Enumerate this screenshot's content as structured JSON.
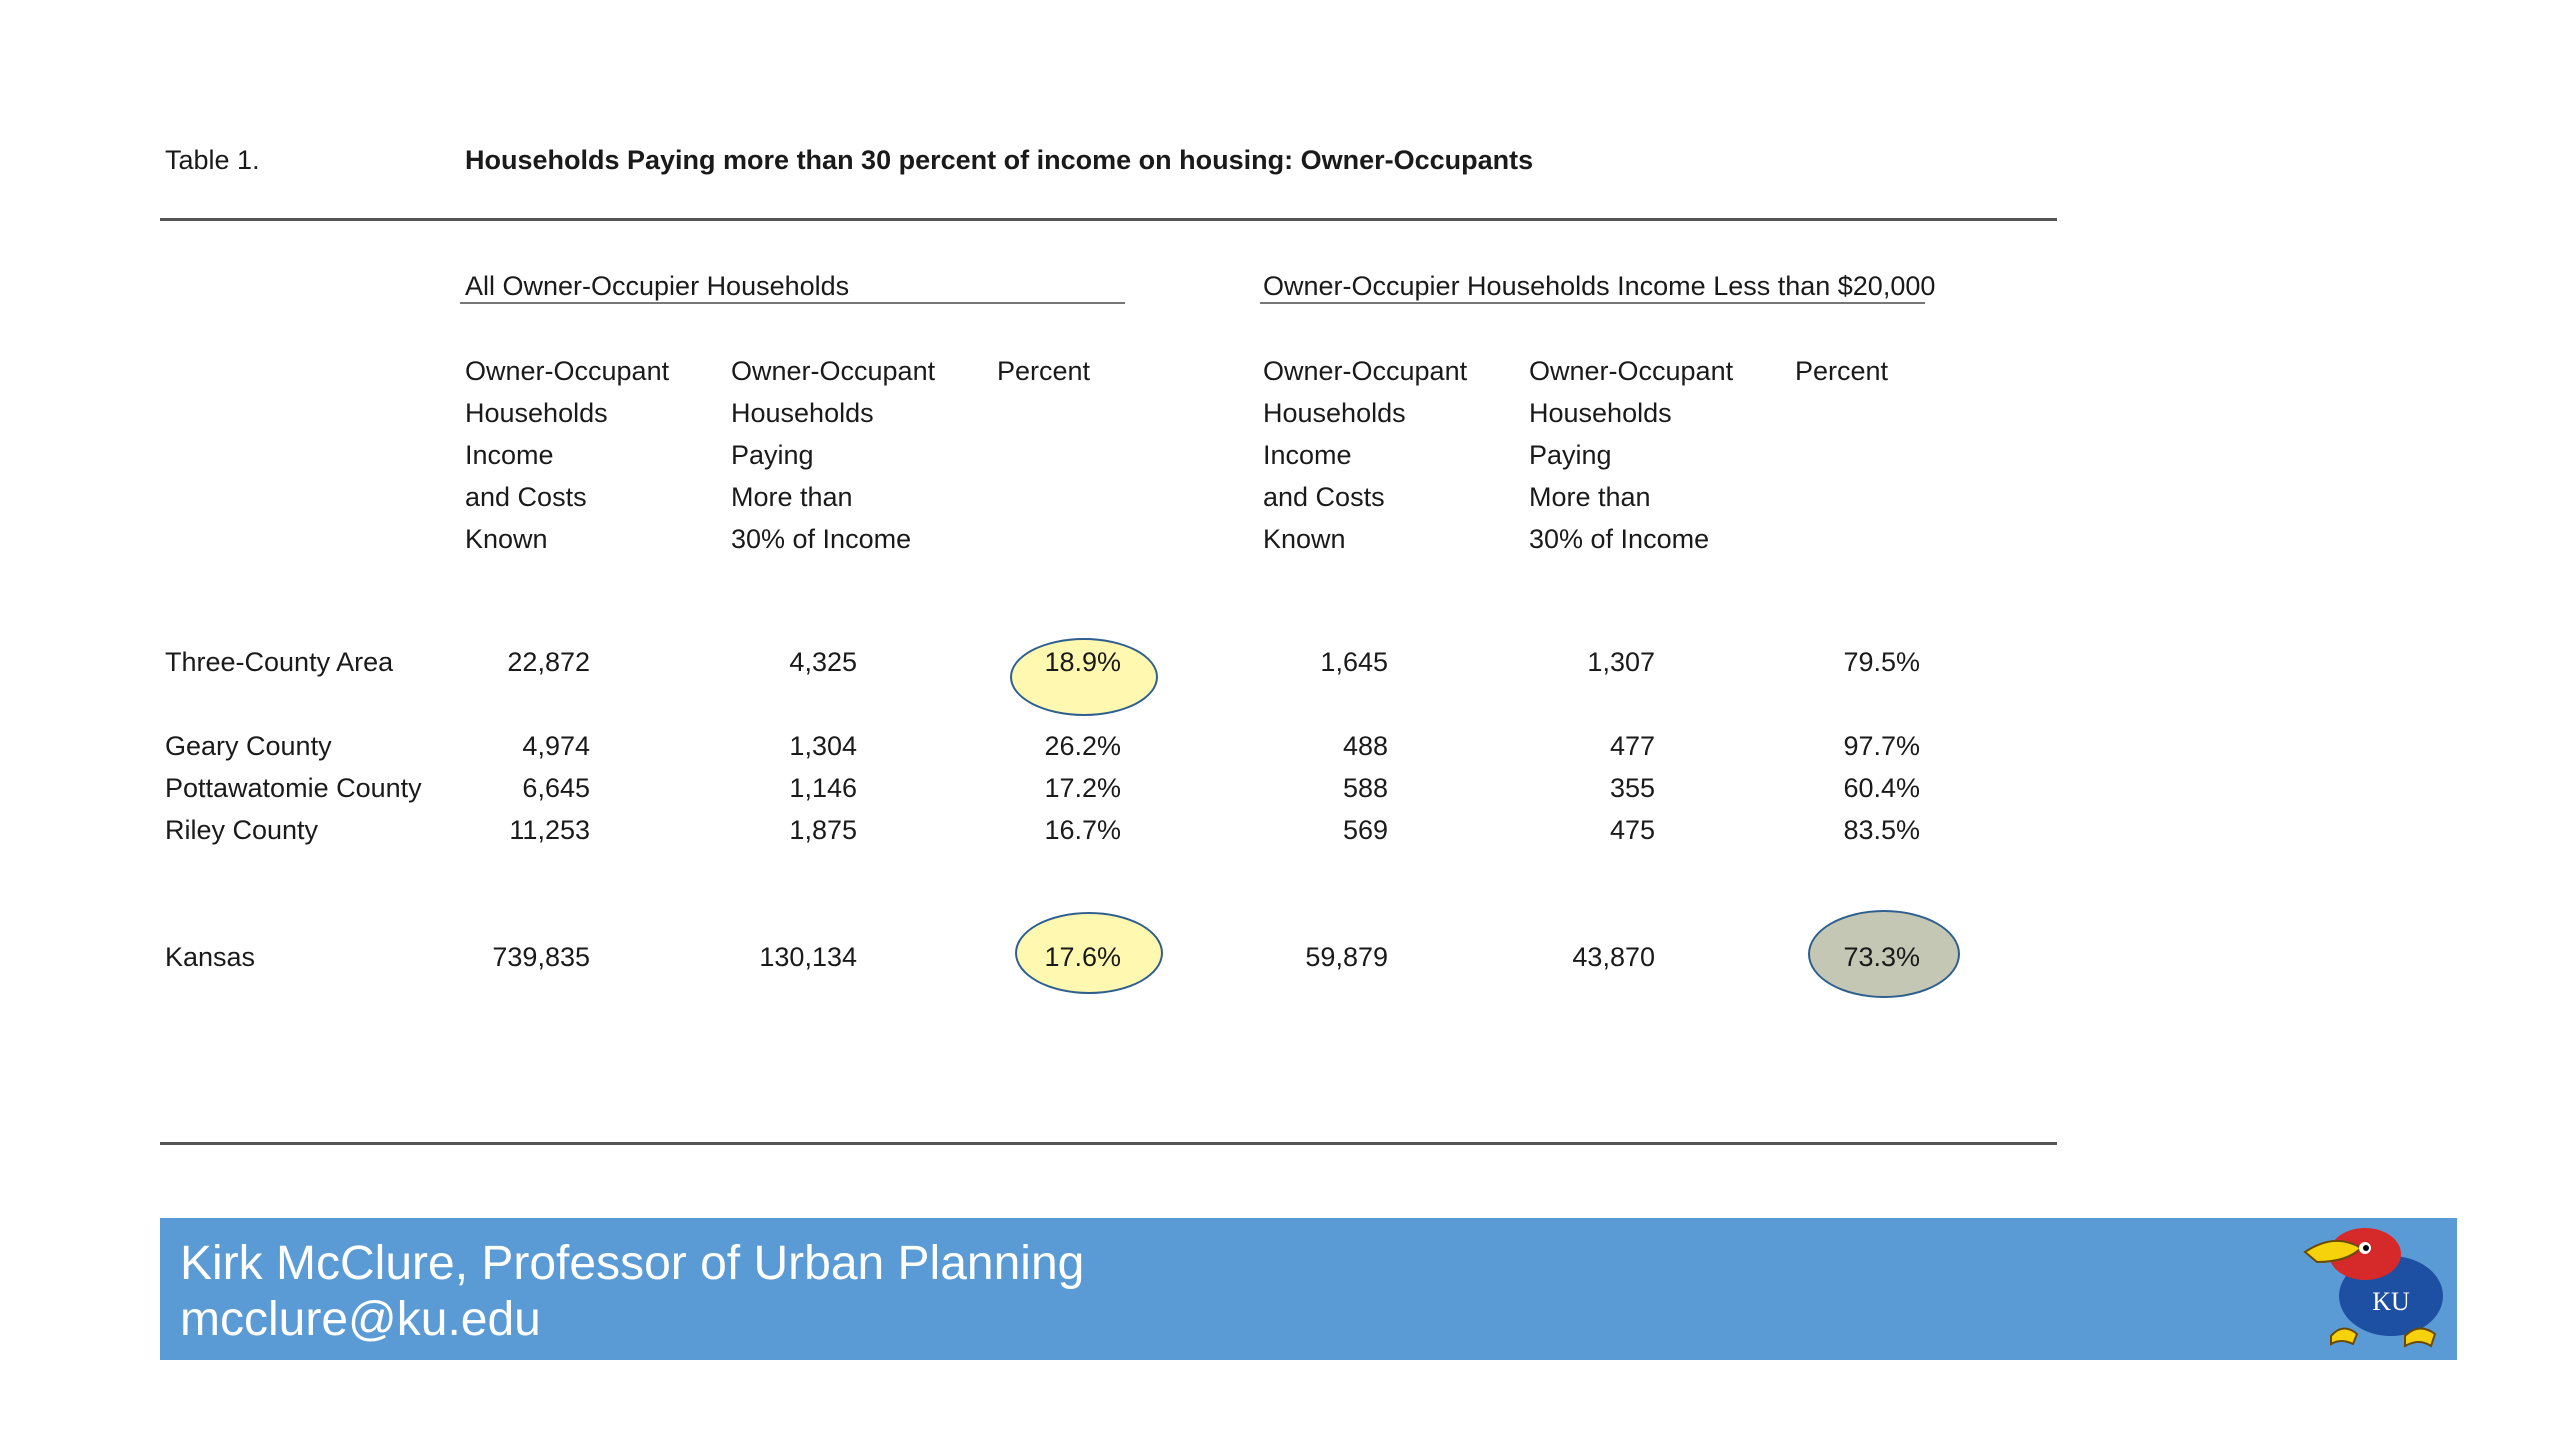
{
  "table": {
    "label": "Table 1.",
    "title": "Households Paying more than 30 percent of income on housing: Owner-Occupants",
    "groups": [
      "All Owner-Occupier Households",
      "Owner-Occupier Households Income Less than $20,000"
    ],
    "col_headers": [
      [
        "Owner-Occupant",
        "Households",
        "Income",
        "and Costs",
        "Known"
      ],
      [
        "Owner-Occupant",
        "Households",
        "Paying",
        "More than",
        "30% of Income"
      ],
      [
        "Percent"
      ]
    ],
    "rows": [
      {
        "name": "Three-County Area",
        "values": [
          "22,872",
          "4,325",
          "18.9%",
          "1,645",
          "1,307",
          "79.5%"
        ]
      },
      {
        "name": "Geary County",
        "values": [
          "4,974",
          "1,304",
          "26.2%",
          "488",
          "477",
          "97.7%"
        ]
      },
      {
        "name": "Pottawatomie County",
        "values": [
          "6,645",
          "1,146",
          "17.2%",
          "588",
          "355",
          "60.4%"
        ]
      },
      {
        "name": "Riley County",
        "values": [
          "11,253",
          "1,875",
          "16.7%",
          "569",
          "475",
          "83.5%"
        ]
      },
      {
        "name": "Kansas",
        "values": [
          "739,835",
          "130,134",
          "17.6%",
          "59,879",
          "43,870",
          "73.3%"
        ]
      }
    ],
    "highlight_colors": {
      "yellow": "#fff8b0",
      "gray": "#c5c7b5",
      "outline": "#2e5f8f"
    }
  },
  "footer": {
    "author": "Kirk McClure, Professor of Urban Planning",
    "email": "mcclure@ku.edu",
    "background": "#5b9bd5",
    "logo_icon": "ku-jayhawk-logo",
    "logo_text": "KU"
  }
}
